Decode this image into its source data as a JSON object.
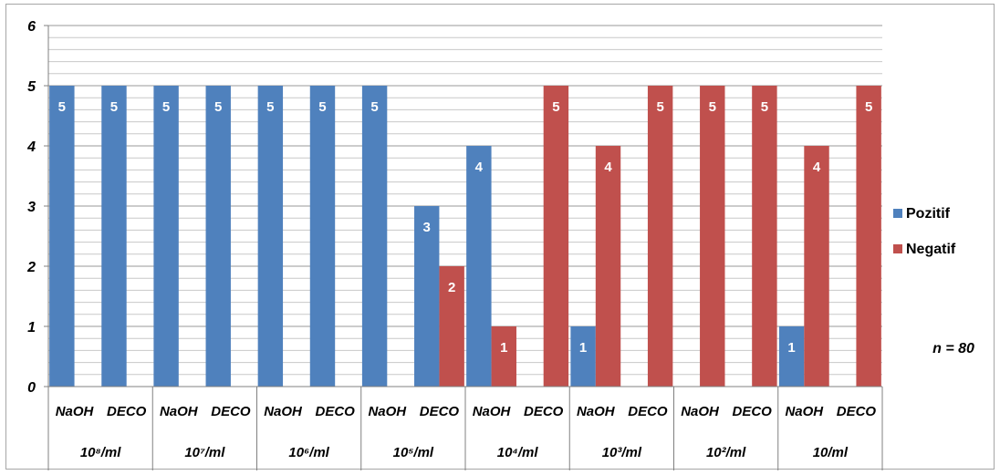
{
  "chart_data": {
    "type": "bar",
    "ylim": [
      0,
      6
    ],
    "yticks": [
      "0",
      "1",
      "2",
      "3",
      "4",
      "5",
      "6"
    ],
    "minor_grid_step": 0.2,
    "grid": true,
    "legend_position": "right",
    "groups": [
      "10⁸/ml",
      "10⁷/ml",
      "10⁶/ml",
      "10⁵/ml",
      "10⁴/ml",
      "10³/ml",
      "10²/ml",
      "10/ml"
    ],
    "methods": [
      "NaOH",
      "DECO"
    ],
    "series": [
      {
        "name": "Pozitif",
        "color": "#4f81bd",
        "values": [
          5,
          5,
          5,
          5,
          5,
          5,
          5,
          3,
          4,
          0,
          1,
          0,
          0,
          0,
          1,
          0
        ]
      },
      {
        "name": "Negatif",
        "color": "#c0504d",
        "values": [
          0,
          0,
          0,
          0,
          0,
          0,
          0,
          2,
          1,
          5,
          4,
          5,
          5,
          5,
          4,
          5
        ]
      }
    ],
    "annotation": "n = 80"
  }
}
